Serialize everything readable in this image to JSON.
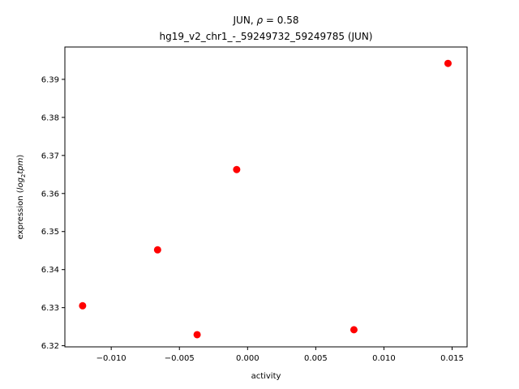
{
  "chart_data": {
    "type": "scatter",
    "title_gene": "JUN",
    "title_rho_symbol": "ρ",
    "title_rho_value": "0.58",
    "subtitle": "hg19_v2_chr1_-_59249732_59249785 (JUN)",
    "xlabel": "activity",
    "ylabel_prefix": "expression (",
    "ylabel_log": "log",
    "ylabel_sub": "2",
    "ylabel_tpm": "tpm",
    "ylabel_suffix": ")",
    "xlim": [
      -0.0134,
      0.0161
    ],
    "ylim": [
      6.3197,
      6.3985
    ],
    "xticks": [
      -0.01,
      -0.005,
      0.0,
      0.005,
      0.01,
      0.015
    ],
    "xtick_labels": [
      "−0.010",
      "−0.005",
      "0.000",
      "0.005",
      "0.010",
      "0.015"
    ],
    "yticks": [
      6.32,
      6.33,
      6.34,
      6.35,
      6.36,
      6.37,
      6.38,
      6.39
    ],
    "ytick_labels": [
      "6.32",
      "6.33",
      "6.34",
      "6.35",
      "6.36",
      "6.37",
      "6.38",
      "6.39"
    ],
    "grid": false,
    "marker_color": "#ff0000",
    "points": [
      {
        "x": -0.0121,
        "y": 6.3305
      },
      {
        "x": -0.0066,
        "y": 6.3452
      },
      {
        "x": -0.0037,
        "y": 6.3229
      },
      {
        "x": -0.0008,
        "y": 6.3663
      },
      {
        "x": 0.0078,
        "y": 6.3242
      },
      {
        "x": 0.0147,
        "y": 6.3942
      }
    ]
  }
}
